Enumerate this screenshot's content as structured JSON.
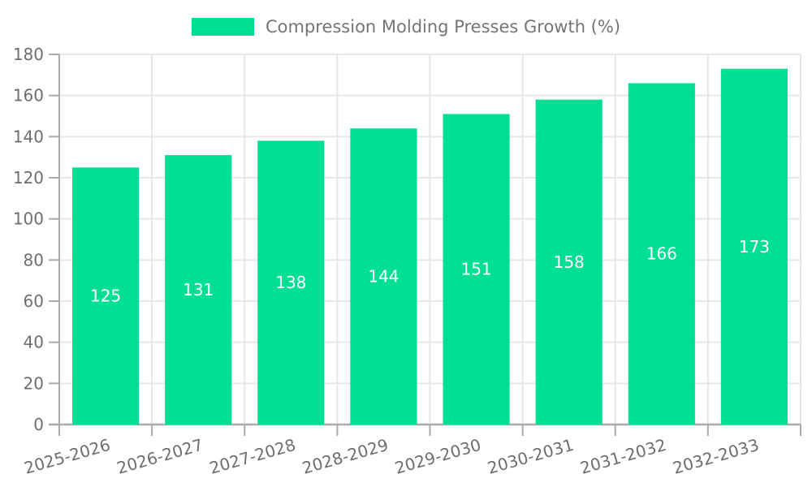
{
  "legend": {
    "label": "Compression Molding Presses Growth (%)"
  },
  "style": {
    "bar_color": "#00DF94",
    "grid_color": "#e7e7e7",
    "axis_color": "#ababab",
    "tick_label_color": "#6e6e6e",
    "legend_text_color": "#757575",
    "value_label_color": "#ffffff",
    "background": "#ffffff"
  },
  "chart_data": {
    "type": "bar",
    "title": "Compression Molding Presses Growth (%)",
    "xlabel": "",
    "ylabel": "",
    "categories": [
      "2025-2026",
      "2026-2027",
      "2027-2028",
      "2028-2029",
      "2029-2030",
      "2030-2031",
      "2031-2032",
      "2032-2033"
    ],
    "series": [
      {
        "name": "Compression Molding Presses Growth (%)",
        "values": [
          125,
          131,
          138,
          144,
          151,
          158,
          166,
          173
        ]
      }
    ],
    "yticks": [
      0,
      20,
      40,
      60,
      80,
      100,
      120,
      140,
      160,
      180
    ],
    "ylim": [
      0,
      180
    ],
    "ytick_step": 20,
    "grid": true,
    "legend_position": "top",
    "bar_value_labels_shown": true,
    "x_label_rotation_deg": -16
  }
}
